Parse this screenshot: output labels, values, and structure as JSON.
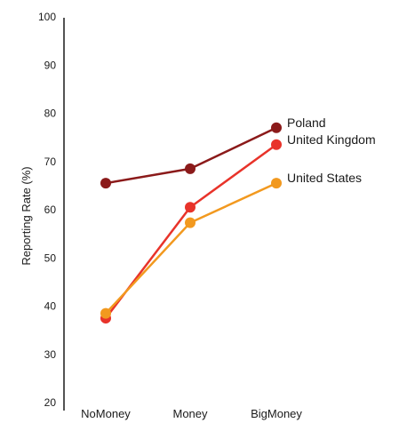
{
  "chart_data": {
    "type": "line",
    "title": "",
    "xlabel": "",
    "ylabel": "Reporting Rate (%)",
    "categories": [
      "NoMoney",
      "Money",
      "BigMoney"
    ],
    "ylim": [
      20,
      100
    ],
    "yticks": [
      20,
      30,
      40,
      50,
      60,
      70,
      80,
      90,
      100
    ],
    "grid": false,
    "legend": "direct-labels-right",
    "series": [
      {
        "name": "Poland",
        "values": [
          65.5,
          68.5,
          77
        ],
        "color": "#8b1a1a"
      },
      {
        "name": "United Kingdom",
        "values": [
          37.5,
          60.5,
          73.5
        ],
        "color": "#e8332a"
      },
      {
        "name": "United States",
        "values": [
          38.5,
          57.3,
          65.5
        ],
        "color": "#f2991f"
      }
    ]
  }
}
